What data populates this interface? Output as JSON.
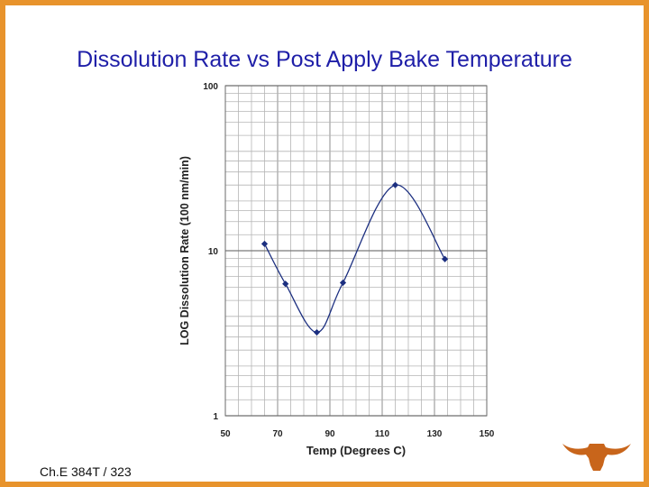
{
  "slide": {
    "title": "Dissolution Rate vs Post Apply Bake Temperature",
    "footer": "Ch.E 384T / 323"
  },
  "colors": {
    "border": "#e8932c",
    "title": "#1f1fa8",
    "series": "#1c2f80",
    "grid": "#b5b5b5",
    "logo": "#c8651b"
  },
  "icons": {
    "logo": "longhorn-logo-icon"
  },
  "chart_data": {
    "type": "line",
    "title": "",
    "xlabel": "Temp (Degrees C)",
    "ylabel": "LOG Dissolution Rate (100 nm/min)",
    "xlim": [
      50,
      150
    ],
    "ylim": [
      1,
      100
    ],
    "yscale": "log",
    "xticks": [
      "50",
      "70",
      "90",
      "110",
      "130",
      "150"
    ],
    "yticks": [
      "1",
      "10",
      "100"
    ],
    "grid": true,
    "legend": "none",
    "series": [
      {
        "points": [
          {
            "x": 65,
            "y": 11
          },
          {
            "x": 73,
            "y": 6.3
          },
          {
            "x": 85,
            "y": 3.2
          },
          {
            "x": 95,
            "y": 6.4
          },
          {
            "x": 115,
            "y": 25
          },
          {
            "x": 134,
            "y": 8.9
          }
        ]
      }
    ]
  }
}
